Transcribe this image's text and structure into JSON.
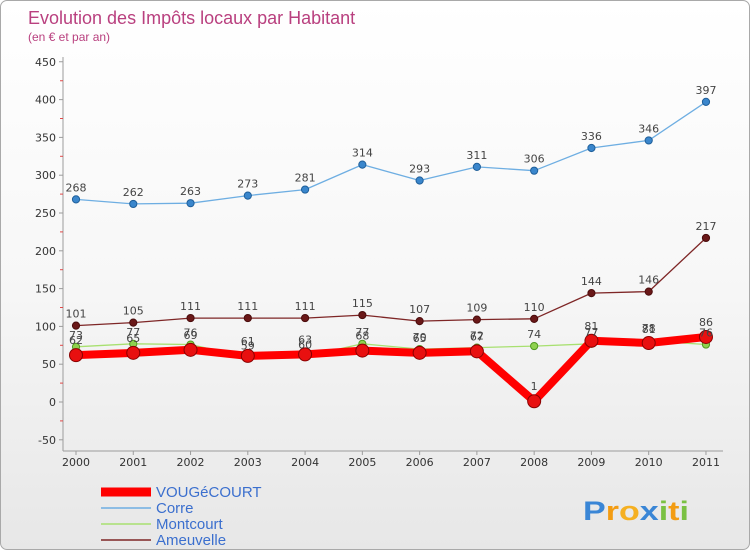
{
  "chart_data": {
    "type": "line",
    "title": "Evolution des Impôts locaux par Habitant",
    "subtitle": "(en € et par an)",
    "xlabel": "",
    "ylabel": "",
    "x": [
      "2000",
      "2001",
      "2002",
      "2003",
      "2004",
      "2005",
      "2006",
      "2007",
      "2008",
      "2009",
      "2010",
      "2011"
    ],
    "ylim": [
      -50,
      450
    ],
    "yticks": [
      -50,
      0,
      50,
      100,
      150,
      200,
      250,
      300,
      350,
      400,
      450
    ],
    "grid": false,
    "legend_position": "bottom-left",
    "series": [
      {
        "name": "VOUGéCOURT",
        "color": "#ff0000",
        "marker_color": "#e81010",
        "values": [
          62,
          65,
          69,
          61,
          63,
          68,
          65,
          67,
          1,
          81,
          78,
          86
        ]
      },
      {
        "name": "Corre",
        "color": "#6eaee2",
        "marker_color": "#3a86cc",
        "values": [
          268,
          262,
          263,
          273,
          281,
          314,
          293,
          311,
          306,
          336,
          346,
          397
        ]
      },
      {
        "name": "Montcourt",
        "color": "#a8e070",
        "marker_color": "#8fd14f",
        "values": [
          73,
          77,
          76,
          59,
          60,
          77,
          70,
          72,
          74,
          77,
          81,
          76
        ]
      },
      {
        "name": "Ameuvelle",
        "color": "#7e2626",
        "marker_color": "#6a1818",
        "values": [
          101,
          105,
          111,
          111,
          111,
          115,
          107,
          109,
          110,
          144,
          146,
          217
        ]
      }
    ]
  },
  "logo": {
    "text": "Proxiti",
    "letters": [
      {
        "char": "P",
        "color": "#3a86d6"
      },
      {
        "char": "r",
        "color": "#f39c12"
      },
      {
        "char": "o",
        "color": "#f5b021"
      },
      {
        "char": "x",
        "color": "#3a86d6"
      },
      {
        "char": "i",
        "color": "#7ac143"
      },
      {
        "char": "t",
        "color": "#f39c12"
      },
      {
        "char": "i",
        "color": "#7ac143"
      }
    ]
  }
}
